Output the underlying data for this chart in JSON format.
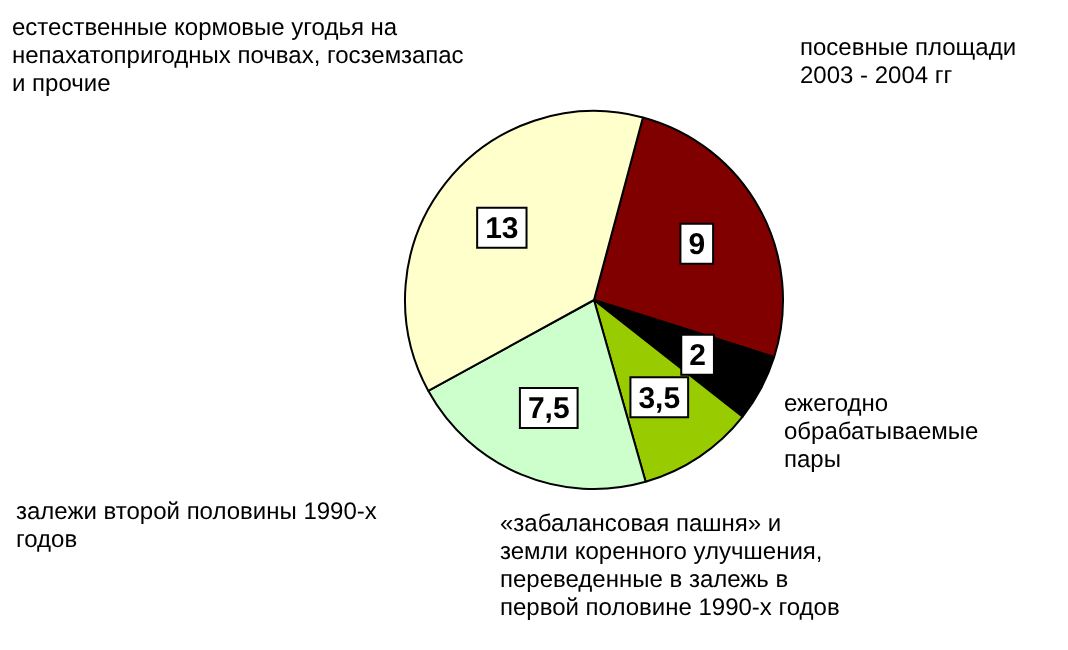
{
  "chart_data": {
    "type": "pie",
    "categories": [
      "посевные площади 2003 - 2004 гг",
      "ежегодно обрабатываемые пары",
      "«забалансовая пашня» и земли коренного улучшения, переведенные в залежь в первой половине 1990-х годов",
      "залежи второй половины 1990-х годов",
      "естественные кормовые угодья на непахатопригодных почвах, госземзапас и прочие"
    ],
    "values": [
      9,
      2,
      3.5,
      7.5,
      13
    ],
    "colors": [
      "#800000",
      "#000000",
      "#99cc00",
      "#ccffcc",
      "#ffffcc"
    ],
    "value_labels": [
      "9",
      "2",
      "3,5",
      "7,5",
      "13"
    ],
    "legend": false
  }
}
